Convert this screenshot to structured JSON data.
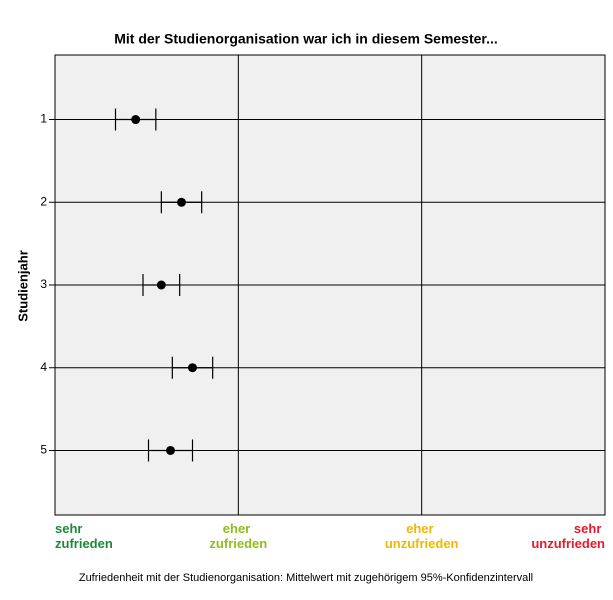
{
  "chart_data": {
    "type": "dot_errorbar",
    "title": "Mit der Studienorganisation war ich in diesem Semester...",
    "y_label": "Studienjahr",
    "note": "Zufriedenheit mit der Studienorganisation: Mittelwert mit zugehörigem 95%-Konfidenzintervall",
    "categories": [
      "1",
      "2",
      "3",
      "4",
      "5"
    ],
    "values": [
      1.44,
      1.69,
      1.58,
      1.75,
      1.63
    ],
    "errors": [
      0.11,
      0.11,
      0.1,
      0.11,
      0.12
    ],
    "color": "#000000",
    "xlim": [
      1,
      4
    ],
    "xticks": [
      {
        "value": 1,
        "label": "sehr zufrieden"
      },
      {
        "value": 2,
        "label": "eher zufrieden"
      },
      {
        "value": 3,
        "label": "eher unzufrieden"
      },
      {
        "value": 4,
        "label": "sehr unzufrieden"
      }
    ],
    "xtick_colors": [
      "#1a8a3a",
      "#8cbf1a",
      "#f0b800",
      "#e8192c"
    ],
    "grid": true
  }
}
